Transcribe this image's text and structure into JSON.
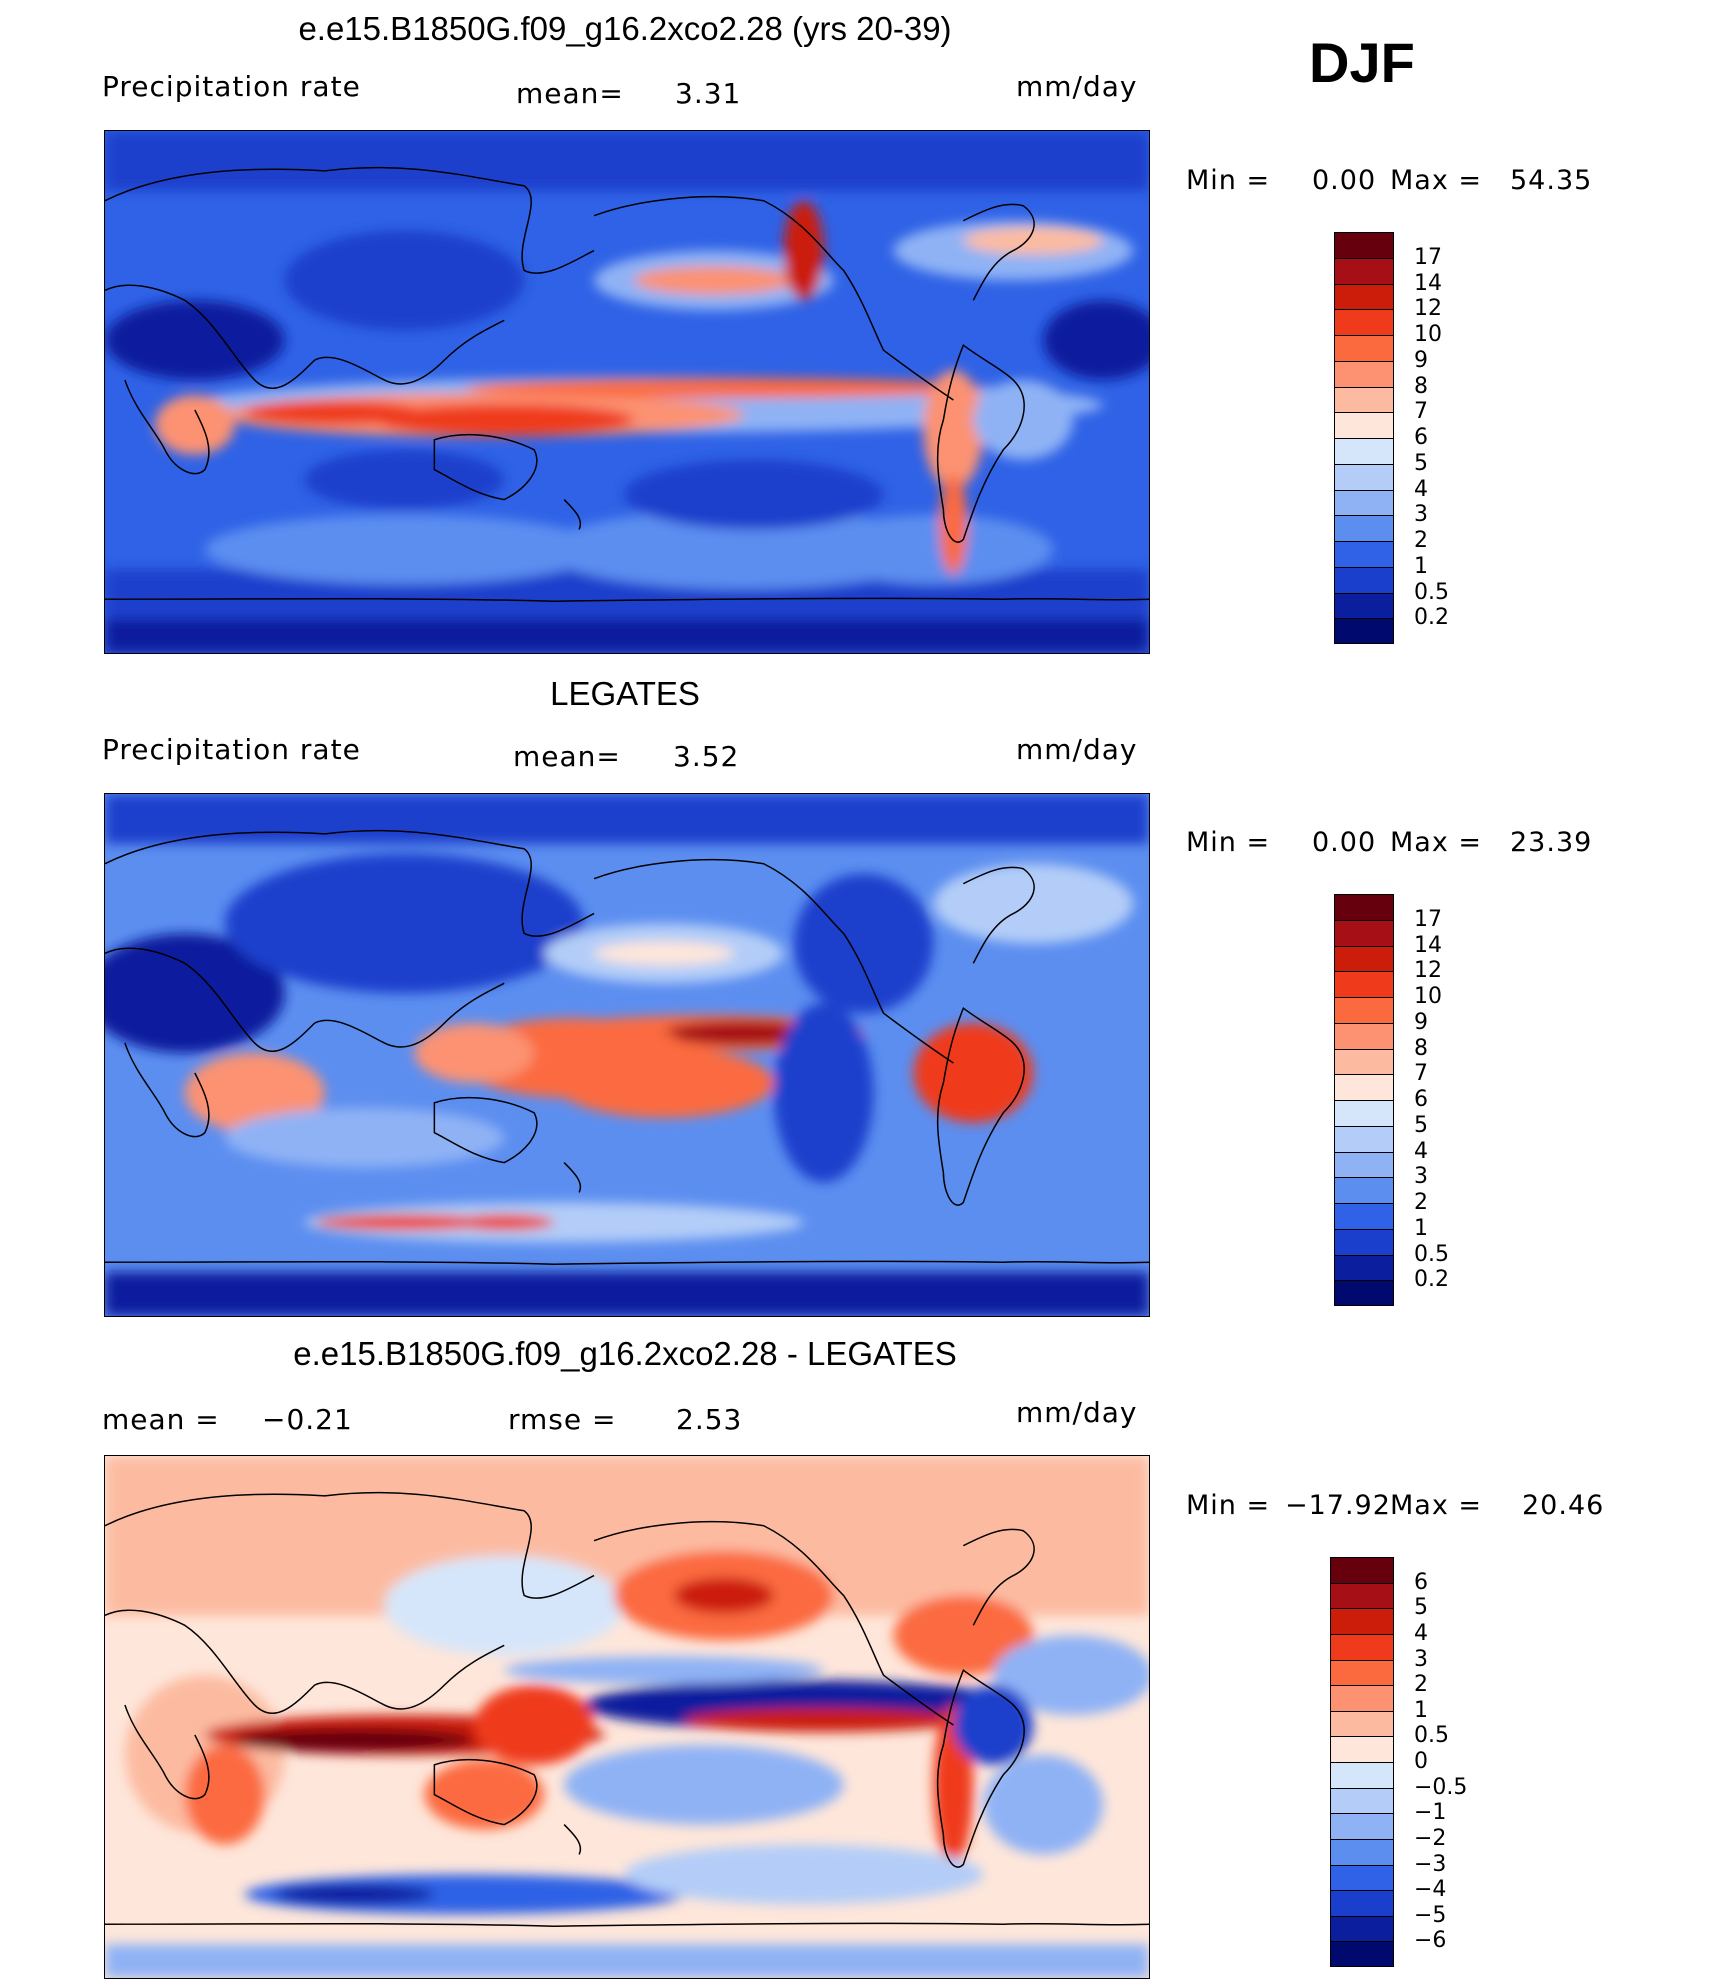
{
  "season": "DJF",
  "panels": [
    {
      "title": "e.e15.B1850G.f09_g16.2xco2.28 (yrs 20-39)",
      "left_label": "Precipitation  rate",
      "center_label": "mean=",
      "center_value": "3.31",
      "right_label": "mm/day",
      "min_label": "Min  =",
      "min_value": "0.00",
      "max_label": "Max  =",
      "max_value": "54.35",
      "colorbar": [
        "17",
        "14",
        "12",
        "10",
        "9",
        "8",
        "7",
        "6",
        "5",
        "4",
        "3",
        "2",
        "1",
        "0.5",
        "0.2"
      ]
    },
    {
      "title": "LEGATES",
      "left_label": "Precipitation  rate",
      "center_label": "mean=",
      "center_value": "3.52",
      "right_label": "mm/day",
      "min_label": "Min  =",
      "min_value": "0.00",
      "max_label": "Max  =",
      "max_value": "23.39",
      "colorbar": [
        "17",
        "14",
        "12",
        "10",
        "9",
        "8",
        "7",
        "6",
        "5",
        "4",
        "3",
        "2",
        "1",
        "0.5",
        "0.2"
      ]
    },
    {
      "title": "e.e15.B1850G.f09_g16.2xco2.28 - LEGATES",
      "left_label": "mean  =",
      "left_value": "−0.21",
      "center_label": "rmse  =",
      "center_value": "2.53",
      "right_label": "mm/day",
      "min_label": "Min  =",
      "min_value": "−17.92",
      "max_label": "Max  =",
      "max_value": "20.46",
      "colorbar": [
        "6",
        "5",
        "4",
        "3",
        "2",
        "1",
        "0.5",
        "0",
        "−0.5",
        "−1",
        "−2",
        "−3",
        "−4",
        "−5",
        "−6"
      ]
    }
  ],
  "colors": {
    "precip_scale": [
      "#67000d",
      "#a50f15",
      "#cb1d0a",
      "#ef3b1c",
      "#fb6a3f",
      "#fc9272",
      "#fcbba1",
      "#fee6da",
      "#d6e6fa",
      "#b3cdf8",
      "#8fb2f5",
      "#5c8ef0",
      "#2f62e6",
      "#1a3fcc",
      "#0a1e9e",
      "#000a6e"
    ],
    "diff_scale": [
      "#67000d",
      "#a50f15",
      "#cb1d0a",
      "#ef3b1c",
      "#fb6a3f",
      "#fc9272",
      "#fcbba1",
      "#fee6da",
      "#d6e6fa",
      "#b3cdf8",
      "#8fb2f5",
      "#5c8ef0",
      "#2f62e6",
      "#1a3fcc",
      "#0a1e9e",
      "#000a6e"
    ]
  }
}
